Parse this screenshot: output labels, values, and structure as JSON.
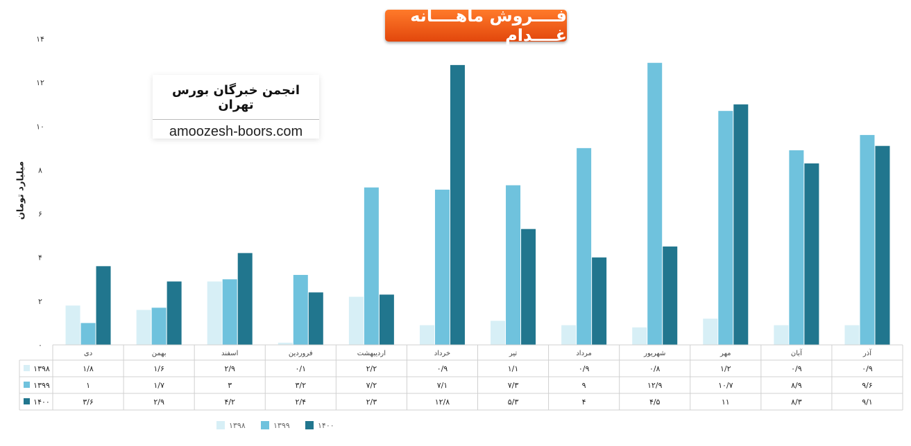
{
  "title": "فــــروش ماهــــانه غــــدام",
  "watermark": {
    "title": "انجمن خبرگان بورس تهران",
    "url": "amoozesh-boors.com"
  },
  "colors": {
    "1398": "#d7eff6",
    "1399": "#6fc2dd",
    "1400": "#21768e",
    "title_bg": "#f0600f"
  },
  "chart_data": {
    "type": "bar",
    "title": "فــــروش ماهــــانه غــــدام",
    "ylabel": "میلیارد تومان",
    "xlabel": "",
    "ylim": [
      0,
      14
    ],
    "y_ticks": [
      "۰",
      "۲",
      "۴",
      "۶",
      "۸",
      "۱۰",
      "۱۲",
      "۱۴"
    ],
    "grid": false,
    "legend_position": "bottom",
    "categories": [
      "دی",
      "بهمن",
      "اسفند",
      "فروردین",
      "اردیبهشت",
      "خرداد",
      "تیر",
      "مرداد",
      "شهریور",
      "مهر",
      "آبان",
      "آذر"
    ],
    "series": [
      {
        "name": "۱۳۹۸",
        "values": [
          1.8,
          1.6,
          2.9,
          0.1,
          2.2,
          0.9,
          1.1,
          0.9,
          0.8,
          1.2,
          0.9,
          0.9
        ],
        "labels": [
          "۱/۸",
          "۱/۶",
          "۲/۹",
          "۰/۱",
          "۲/۲",
          "۰/۹",
          "۱/۱",
          "۰/۹",
          "۰/۸",
          "۱/۲",
          "۰/۹",
          "۰/۹"
        ]
      },
      {
        "name": "۱۳۹۹",
        "values": [
          1,
          1.7,
          3,
          3.2,
          7.2,
          7.1,
          7.3,
          9,
          12.9,
          10.7,
          8.9,
          9.6
        ],
        "labels": [
          "۱",
          "۱/۷",
          "۳",
          "۳/۲",
          "۷/۲",
          "۷/۱",
          "۷/۳",
          "۹",
          "۱۲/۹",
          "۱۰/۷",
          "۸/۹",
          "۹/۶"
        ]
      },
      {
        "name": "۱۴۰۰",
        "values": [
          3.6,
          2.9,
          4.2,
          2.4,
          2.3,
          12.8,
          5.3,
          4,
          4.5,
          11,
          8.3,
          9.1
        ],
        "labels": [
          "۳/۶",
          "۲/۹",
          "۴/۲",
          "۲/۴",
          "۲/۳",
          "۱۲/۸",
          "۵/۳",
          "۴",
          "۴/۵",
          "۱۱",
          "۸/۳",
          "۹/۱"
        ]
      }
    ]
  }
}
